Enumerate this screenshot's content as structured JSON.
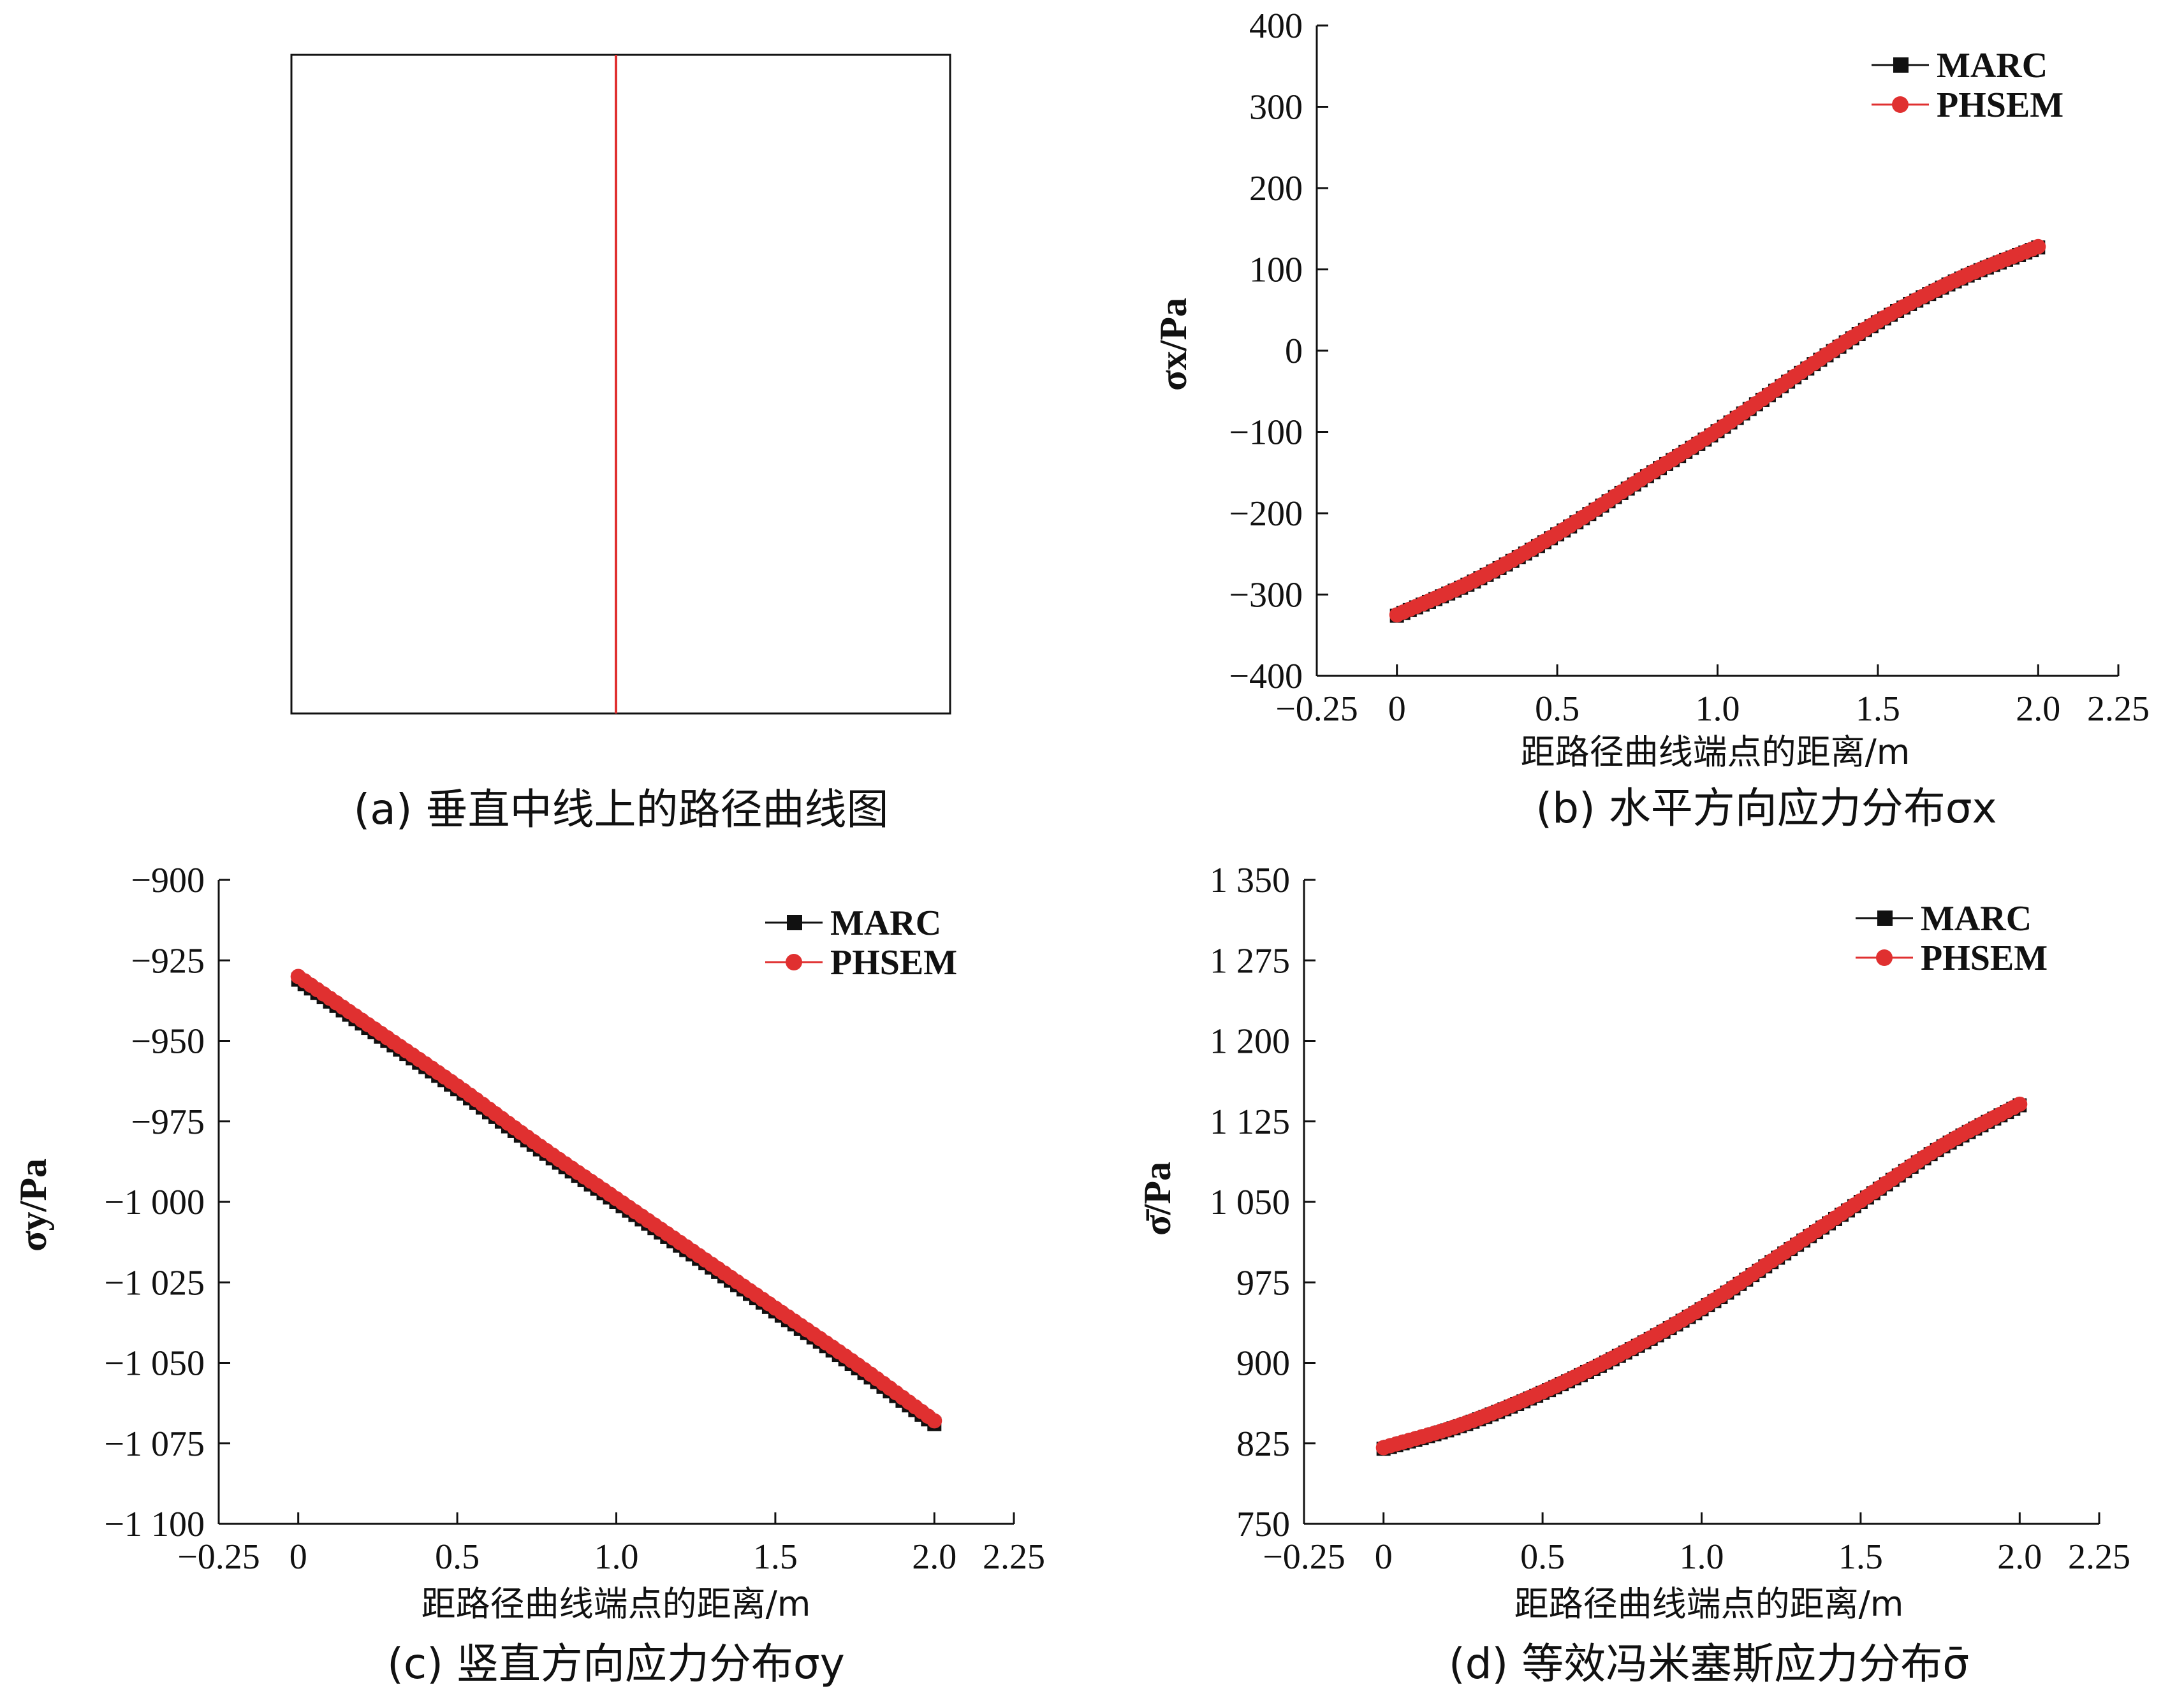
{
  "panel_a": {
    "caption": "(a) 垂直中线上的路径曲线图"
  },
  "chart_data": [
    {
      "id": "b",
      "type": "line",
      "caption": "(b) 水平方向应力分布σx",
      "xlabel": "距路径曲线端点的距离/m",
      "ylabel": "σx/Pa",
      "xlim": [
        -0.25,
        2.25
      ],
      "ylim": [
        -400,
        400
      ],
      "xticks": [
        -0.25,
        0,
        0.5,
        1.0,
        1.5,
        2.0,
        2.25
      ],
      "xtick_labels": [
        "−0.25",
        "0",
        "0.5",
        "1.0",
        "1.5",
        "2.0",
        "2.25"
      ],
      "yticks": [
        -400,
        -300,
        -200,
        -100,
        0,
        100,
        200,
        300,
        400
      ],
      "ytick_labels": [
        "−400",
        "−300",
        "−200",
        "−100",
        "0",
        "100",
        "200",
        "300",
        "400"
      ],
      "legend_position": "top-right",
      "x": [
        0,
        0.25,
        0.5,
        0.75,
        1.0,
        1.25,
        1.5,
        1.75,
        2.0
      ],
      "series": [
        {
          "name": "MARC",
          "color": "#111111",
          "marker": "square",
          "values": [
            -326,
            -282,
            -226,
            -162,
            -99,
            -30,
            35,
            87,
            127
          ]
        },
        {
          "name": "PHSEM",
          "color": "#e03030",
          "marker": "circle",
          "values": [
            -325,
            -281,
            -225,
            -161,
            -98,
            -29,
            36,
            88,
            128
          ]
        }
      ]
    },
    {
      "id": "c",
      "type": "line",
      "caption": "(c) 竖直方向应力分布σy",
      "xlabel": "距路径曲线端点的距离/m",
      "ylabel": "σy/Pa",
      "xlim": [
        -0.25,
        2.25
      ],
      "ylim": [
        -1100,
        -900
      ],
      "xticks": [
        -0.25,
        0,
        0.5,
        1.0,
        1.5,
        2.0,
        2.25
      ],
      "xtick_labels": [
        "−0.25",
        "0",
        "0.5",
        "1.0",
        "1.5",
        "2.0",
        "2.25"
      ],
      "yticks": [
        -1100,
        -1075,
        -1050,
        -1025,
        -1000,
        -975,
        -950,
        -925,
        -900
      ],
      "ytick_labels": [
        "−1 100",
        "−1 075",
        "−1 050",
        "−1 025",
        "−1 000",
        "−975",
        "−950",
        "−925",
        "−900"
      ],
      "legend_position": "top-right",
      "x": [
        0,
        0.25,
        0.5,
        0.75,
        1.0,
        1.25,
        1.5,
        1.75,
        2.0
      ],
      "series": [
        {
          "name": "MARC",
          "color": "#111111",
          "marker": "square",
          "values": [
            -931,
            -948,
            -965,
            -983,
            -1000,
            -1017,
            -1034,
            -1051,
            -1069
          ]
        },
        {
          "name": "PHSEM",
          "color": "#e03030",
          "marker": "circle",
          "values": [
            -930,
            -947,
            -964,
            -982,
            -999,
            -1016,
            -1033,
            -1050,
            -1068
          ]
        }
      ]
    },
    {
      "id": "d",
      "type": "line",
      "caption": "(d) 等效冯米塞斯应力分布σ̄",
      "xlabel": "距路径曲线端点的距离/m",
      "ylabel": "σ̄/Pa",
      "xlim": [
        -0.25,
        2.25
      ],
      "ylim": [
        750,
        1350
      ],
      "xticks": [
        -0.25,
        0,
        0.5,
        1.0,
        1.5,
        2.0,
        2.25
      ],
      "xtick_labels": [
        "−0.25",
        "0",
        "0.5",
        "1.0",
        "1.5",
        "2.0",
        "2.25"
      ],
      "yticks": [
        750,
        825,
        900,
        975,
        1050,
        1125,
        1200,
        1275,
        1350
      ],
      "ytick_labels": [
        "750",
        "825",
        "900",
        "975",
        "1 050",
        "1 125",
        "1 200",
        "1 275",
        "1 350"
      ],
      "legend_position": "top-right",
      "x": [
        0,
        0.25,
        0.5,
        0.75,
        1.0,
        1.25,
        1.5,
        1.75,
        2.0
      ],
      "series": [
        {
          "name": "MARC",
          "color": "#111111",
          "marker": "square",
          "values": [
            820,
            842,
            872,
            908,
            950,
            1000,
            1050,
            1100,
            1140
          ]
        },
        {
          "name": "PHSEM",
          "color": "#e03030",
          "marker": "circle",
          "values": [
            821,
            843,
            873,
            909,
            951,
            1001,
            1051,
            1101,
            1141
          ]
        }
      ]
    }
  ]
}
